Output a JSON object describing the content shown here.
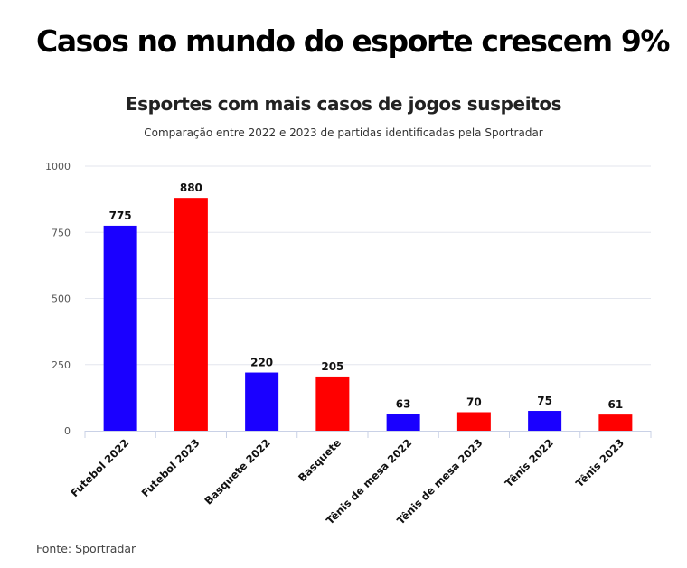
{
  "headline": "Casos no mundo do esporte crescem 9%",
  "source": "Fonte: Sportradar",
  "chart_data": {
    "type": "bar",
    "title": "Esportes com mais casos de jogos suspeitos",
    "subtitle": "Comparação entre 2022 e 2023 de partidas identificadas pela Sportradar",
    "categories": [
      "Futebol 2022",
      "Futebol 2023",
      "Basquete 2022",
      "Basquete",
      "Tênis de mesa 2022",
      "Tênis de mesa 2023",
      "Tênis 2022",
      "Tênis 2023"
    ],
    "values": [
      775,
      880,
      220,
      205,
      63,
      70,
      75,
      61
    ],
    "colors": [
      "#1a00ff",
      "#ff0000",
      "#1a00ff",
      "#ff0000",
      "#1a00ff",
      "#ff0000",
      "#1a00ff",
      "#ff0000"
    ],
    "ylim": [
      0,
      1000
    ],
    "yticks": [
      0,
      250,
      500,
      750,
      1000
    ],
    "xlabel": "",
    "ylabel": "",
    "grid": true,
    "data_labels": true
  }
}
